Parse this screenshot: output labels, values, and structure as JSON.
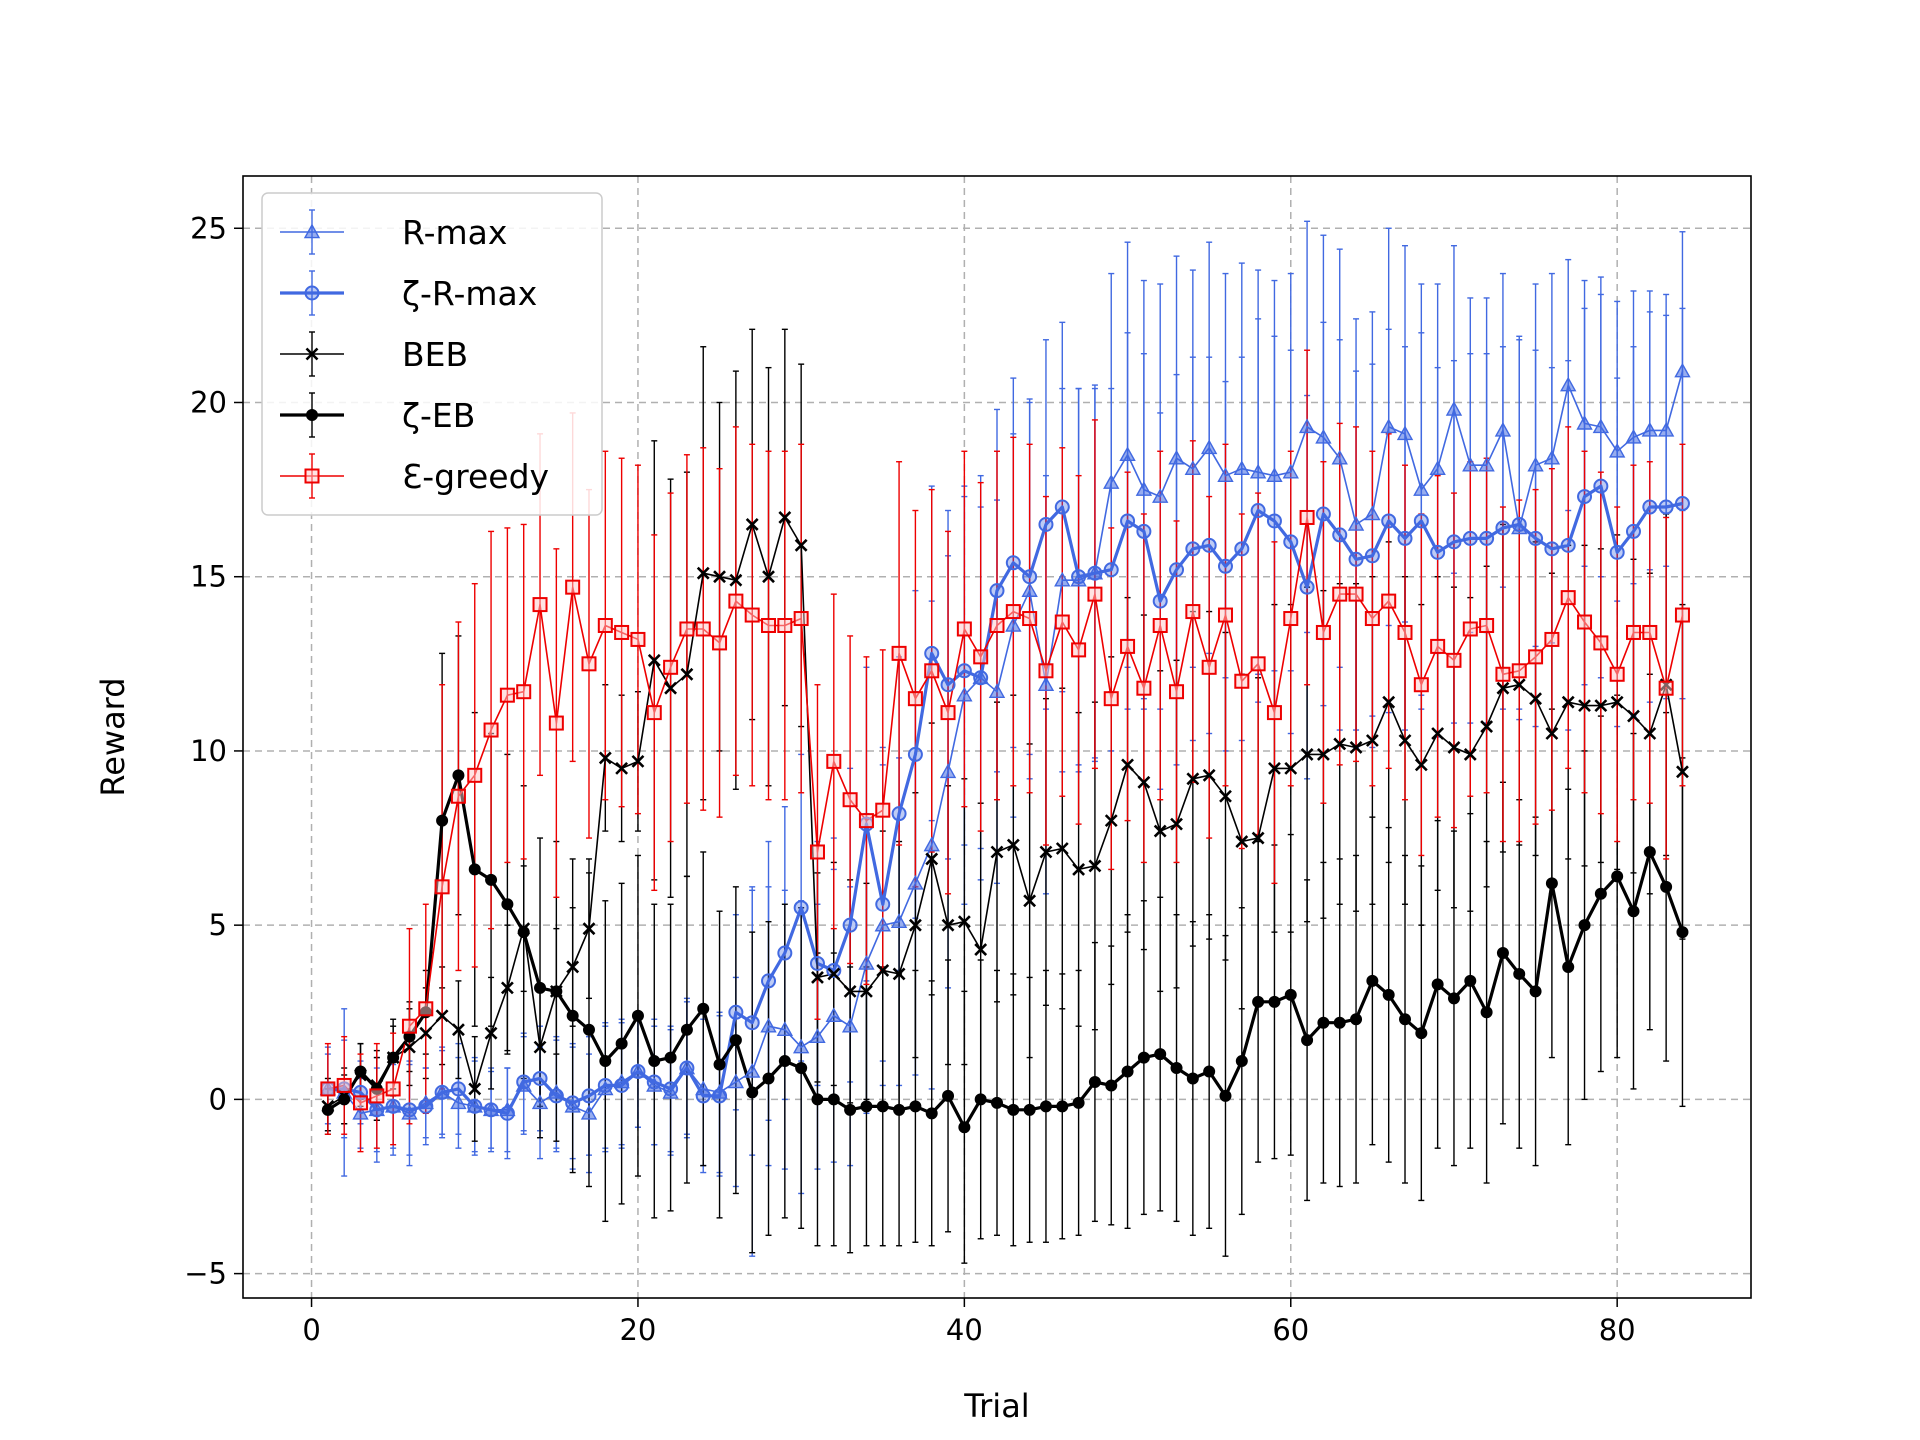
{
  "chart_data": {
    "type": "line",
    "title": "",
    "xlabel": "Trial",
    "ylabel": "Reward",
    "xlim": [
      -4.2,
      88.2
    ],
    "ylim": [
      -5.7,
      26.5
    ],
    "xticks": [
      0,
      20,
      40,
      60,
      80
    ],
    "yticks": [
      -5,
      0,
      5,
      10,
      15,
      20,
      25
    ],
    "xtick_labels": [
      "0",
      "20",
      "40",
      "60",
      "80"
    ],
    "ytick_labels": [
      "−5",
      "0",
      "5",
      "10",
      "15",
      "20",
      "25"
    ],
    "grid": true,
    "legend_position": "top-left",
    "x": [
      1,
      2,
      3,
      4,
      5,
      6,
      7,
      8,
      9,
      10,
      11,
      12,
      13,
      14,
      15,
      16,
      17,
      18,
      19,
      20,
      21,
      22,
      23,
      24,
      25,
      26,
      27,
      28,
      29,
      30,
      31,
      32,
      33,
      34,
      35,
      36,
      37,
      38,
      39,
      40,
      41,
      42,
      43,
      44,
      45,
      46,
      47,
      48,
      49,
      50,
      51,
      52,
      53,
      54,
      55,
      56,
      57,
      58,
      59,
      60,
      61,
      62,
      63,
      64,
      65,
      66,
      67,
      68,
      69,
      70,
      71,
      72,
      73,
      74,
      75,
      76,
      77,
      78,
      79,
      80,
      81,
      82,
      83,
      84
    ],
    "series": [
      {
        "name": "R-max",
        "color": "#4169e1",
        "marker": "triangle",
        "line_width": "thin",
        "values": [
          0.3,
          0.2,
          -0.4,
          -0.3,
          -0.2,
          -0.4,
          -0.1,
          0.2,
          -0.1,
          -0.2,
          -0.3,
          -0.3,
          0.4,
          -0.1,
          0.2,
          -0.2,
          -0.4,
          0.3,
          0.5,
          0.8,
          0.4,
          0.2,
          0.9,
          0.3,
          0.2,
          0.5,
          0.8,
          2.1,
          2.0,
          1.5,
          1.8,
          2.4,
          2.1,
          3.9,
          5.0,
          5.1,
          6.2,
          7.3,
          9.4,
          11.6,
          12.1,
          11.7,
          13.6,
          14.6,
          11.9,
          14.9,
          14.9,
          15.1,
          17.7,
          18.5,
          17.5,
          17.3,
          18.4,
          18.1,
          18.7,
          17.9,
          18.1,
          18.0,
          17.9,
          18.0,
          19.3,
          19.0,
          18.4,
          16.5,
          16.8,
          19.3,
          19.1,
          17.5,
          18.1,
          19.8,
          18.2,
          18.2,
          19.2,
          16.4,
          18.2,
          18.4,
          20.5,
          19.4,
          19.3,
          18.6,
          19.0,
          19.2,
          19.2,
          20.9
        ],
        "errors": [
          1.2,
          2.4,
          1.0,
          1.5,
          1.4,
          1.5,
          1.0,
          1.2,
          1.3,
          1.4,
          1.1,
          1.2,
          1.4,
          1.6,
          1.6,
          1.8,
          1.7,
          1.8,
          1.8,
          1.6,
          1.7,
          1.8,
          2.0,
          2.2,
          2.3,
          3.0,
          5.3,
          4.0,
          4.0,
          4.2,
          3.8,
          4.2,
          4.0,
          4.3,
          4.6,
          4.7,
          5.5,
          7.0,
          6.2,
          6.0,
          5.8,
          5.5,
          5.5,
          5.4,
          6.0,
          5.5,
          5.5,
          5.4,
          6.0,
          6.1,
          6.0,
          6.1,
          5.8,
          5.7,
          5.9,
          5.8,
          5.9,
          5.8,
          5.6,
          5.7,
          5.9,
          5.8,
          6.0,
          5.9,
          5.8,
          5.7,
          5.4,
          5.9,
          5.3,
          4.7,
          4.8,
          4.8,
          4.5,
          5.5,
          5.2,
          5.3,
          3.6,
          4.1,
          4.3,
          4.3,
          4.2,
          4.0,
          3.9,
          4.0
        ]
      },
      {
        "name": "ζ-R-max",
        "color": "#4169e1",
        "marker": "circle",
        "line_width": "thick",
        "values": [
          0.3,
          0.3,
          0.2,
          -0.3,
          -0.2,
          -0.3,
          -0.2,
          0.2,
          0.3,
          -0.2,
          -0.3,
          -0.4,
          0.5,
          0.6,
          0.1,
          -0.1,
          0.1,
          0.4,
          0.4,
          0.8,
          0.5,
          0.3,
          0.9,
          0.1,
          0.1,
          2.5,
          2.2,
          3.4,
          4.2,
          5.5,
          3.9,
          3.7,
          5.0,
          7.9,
          5.6,
          8.2,
          9.9,
          12.8,
          11.9,
          12.3,
          12.1,
          14.6,
          15.4,
          15.0,
          16.5,
          17.0,
          15.0,
          15.1,
          15.2,
          16.6,
          16.3,
          14.3,
          15.2,
          15.8,
          15.9,
          15.3,
          15.8,
          16.9,
          16.6,
          16.0,
          14.7,
          16.8,
          16.2,
          15.5,
          15.6,
          16.6,
          16.1,
          16.6,
          15.7,
          16.0,
          16.1,
          16.1,
          16.4,
          16.5,
          16.1,
          15.8,
          15.9,
          17.3,
          17.6,
          15.7,
          16.3,
          17.0,
          17.0,
          17.1
        ],
        "errors": [
          1.0,
          1.4,
          0.9,
          1.2,
          1.2,
          1.3,
          1.1,
          1.3,
          1.3,
          1.3,
          1.2,
          1.3,
          1.4,
          1.5,
          1.6,
          1.6,
          1.7,
          1.8,
          1.8,
          1.6,
          1.8,
          1.8,
          1.9,
          2.2,
          2.3,
          2.8,
          3.8,
          4.0,
          4.2,
          4.4,
          3.5,
          3.8,
          4.5,
          4.5,
          4.5,
          4.5,
          4.7,
          4.8,
          5.0,
          5.0,
          4.9,
          5.2,
          5.3,
          5.1,
          5.3,
          5.3,
          5.4,
          5.3,
          5.2,
          5.4,
          5.1,
          5.4,
          5.6,
          5.5,
          5.4,
          5.3,
          5.5,
          5.5,
          5.3,
          5.5,
          5.5,
          5.5,
          5.6,
          5.4,
          5.5,
          5.5,
          5.5,
          5.4,
          5.3,
          5.2,
          5.3,
          5.3,
          5.2,
          5.3,
          5.4,
          5.2,
          5.3,
          5.4,
          5.5,
          5.0,
          5.3,
          5.6,
          5.5,
          5.6
        ]
      },
      {
        "name": "BEB",
        "color": "#000000",
        "marker": "x",
        "line_width": "thin",
        "values": [
          -0.2,
          0.1,
          0.7,
          0.4,
          1.2,
          1.5,
          1.9,
          2.4,
          2.0,
          0.3,
          1.9,
          3.2,
          4.9,
          1.5,
          3.1,
          3.8,
          4.9,
          9.8,
          9.5,
          9.7,
          12.6,
          11.8,
          12.2,
          15.1,
          15.0,
          14.9,
          16.5,
          15.0,
          16.7,
          15.9,
          3.5,
          3.6,
          3.1,
          3.1,
          3.7,
          3.6,
          5.0,
          6.9,
          5.0,
          5.1,
          4.3,
          7.1,
          7.3,
          5.7,
          7.1,
          7.2,
          6.6,
          6.7,
          8.0,
          9.6,
          9.1,
          7.7,
          7.9,
          9.2,
          9.3,
          8.7,
          7.4,
          7.5,
          9.5,
          9.5,
          9.9,
          9.9,
          10.2,
          10.1,
          10.3,
          11.4,
          10.3,
          9.6,
          10.5,
          10.1,
          9.9,
          10.7,
          11.8,
          11.9,
          11.5,
          10.5,
          11.4,
          11.3,
          11.3,
          11.4,
          11.0,
          10.5,
          11.9,
          9.4
        ],
        "errors": [
          0.8,
          0.8,
          0.9,
          1.0,
          1.1,
          1.1,
          1.3,
          1.4,
          1.4,
          1.5,
          1.6,
          1.8,
          1.8,
          1.7,
          1.8,
          1.7,
          2.0,
          2.1,
          2.1,
          2.0,
          6.3,
          6.0,
          5.8,
          6.5,
          5.0,
          6.0,
          5.6,
          6.0,
          5.4,
          5.2,
          3.0,
          3.2,
          3.2,
          3.1,
          4.0,
          3.8,
          3.8,
          3.9,
          4.0,
          4.1,
          4.2,
          4.3,
          4.3,
          4.5,
          4.4,
          4.6,
          4.5,
          4.7,
          4.7,
          4.8,
          4.8,
          4.6,
          4.7,
          4.8,
          4.7,
          4.7,
          4.8,
          4.6,
          4.7,
          4.7,
          4.8,
          4.7,
          4.6,
          4.7,
          4.7,
          4.6,
          4.7,
          4.6,
          4.5,
          4.6,
          4.5,
          4.6,
          4.7,
          4.6,
          4.5,
          4.6,
          4.5,
          4.6,
          4.5,
          4.8,
          4.5,
          4.6,
          4.9,
          4.8
        ]
      },
      {
        "name": "ζ-EB",
        "color": "#000000",
        "marker": "dot",
        "line_width": "thick",
        "values": [
          -0.3,
          0.0,
          0.8,
          0.3,
          1.2,
          1.8,
          2.5,
          8.0,
          9.3,
          6.6,
          6.3,
          5.6,
          4.8,
          3.2,
          3.1,
          2.4,
          2.0,
          1.1,
          1.6,
          2.4,
          1.1,
          1.2,
          2.0,
          2.6,
          1.0,
          1.7,
          0.2,
          0.6,
          1.1,
          0.9,
          0.0,
          0.0,
          -0.3,
          -0.2,
          -0.2,
          -0.3,
          -0.2,
          -0.4,
          0.1,
          -0.8,
          0.0,
          -0.1,
          -0.3,
          -0.3,
          -0.2,
          -0.2,
          -0.1,
          0.5,
          0.4,
          0.8,
          1.2,
          1.3,
          0.9,
          0.6,
          0.8,
          0.1,
          1.1,
          2.8,
          2.8,
          3.0,
          1.7,
          2.2,
          2.2,
          2.3,
          3.4,
          3.0,
          2.3,
          1.9,
          3.3,
          2.9,
          3.4,
          2.5,
          4.2,
          3.6,
          3.1,
          6.2,
          3.8,
          5.0,
          5.9,
          6.4,
          5.4,
          7.1,
          6.1,
          4.8
        ],
        "errors": [
          0.6,
          0.7,
          0.8,
          0.9,
          0.9,
          1.0,
          1.2,
          4.8,
          4.0,
          4.5,
          4.2,
          4.3,
          4.2,
          4.3,
          4.3,
          4.5,
          4.5,
          4.6,
          4.6,
          4.6,
          4.5,
          4.4,
          4.4,
          4.5,
          4.4,
          4.4,
          4.6,
          4.5,
          4.5,
          4.6,
          4.2,
          4.2,
          4.1,
          4.0,
          4.0,
          3.9,
          3.9,
          3.8,
          3.9,
          3.9,
          4.0,
          3.8,
          3.9,
          3.8,
          3.9,
          3.8,
          3.8,
          4.0,
          4.0,
          4.5,
          4.5,
          4.5,
          4.4,
          4.5,
          4.5,
          4.6,
          4.4,
          4.6,
          4.5,
          4.6,
          4.6,
          4.6,
          4.7,
          4.7,
          4.7,
          4.8,
          4.7,
          4.8,
          4.7,
          4.8,
          4.8,
          4.9,
          4.9,
          5.0,
          5.0,
          5.0,
          5.1,
          5.0,
          5.1,
          5.2,
          5.1,
          5.1,
          5.0,
          5.0
        ]
      },
      {
        "name": "Ɛ-greedy",
        "color": "#ee0000",
        "marker": "square",
        "line_width": "thin",
        "values": [
          0.3,
          0.4,
          -0.1,
          0.1,
          0.3,
          2.1,
          2.6,
          6.1,
          8.7,
          9.3,
          10.6,
          11.6,
          11.7,
          14.2,
          10.8,
          14.7,
          12.5,
          13.6,
          13.4,
          13.2,
          11.1,
          12.4,
          13.5,
          13.5,
          13.1,
          14.3,
          13.9,
          13.6,
          13.6,
          13.8,
          7.1,
          9.7,
          8.6,
          8.0,
          8.3,
          12.8,
          11.5,
          12.3,
          11.1,
          13.5,
          12.7,
          13.6,
          14.0,
          13.8,
          12.3,
          13.7,
          12.9,
          14.5,
          11.5,
          13.0,
          11.8,
          13.6,
          11.7,
          14.0,
          12.4,
          13.9,
          12.0,
          12.5,
          11.1,
          13.8,
          16.7,
          13.4,
          14.5,
          14.5,
          13.8,
          14.3,
          13.4,
          11.9,
          13.0,
          12.6,
          13.5,
          13.6,
          12.2,
          12.3,
          12.7,
          13.2,
          14.4,
          13.7,
          13.1,
          12.2,
          13.4,
          13.4,
          11.8,
          13.9
        ],
        "errors": [
          1.3,
          1.4,
          1.4,
          1.5,
          1.6,
          2.8,
          3.0,
          5.8,
          5.0,
          5.5,
          5.7,
          4.8,
          4.8,
          4.9,
          5.0,
          5.0,
          5.0,
          5.0,
          5.0,
          5.0,
          5.1,
          5.0,
          5.0,
          5.2,
          5.0,
          5.0,
          4.9,
          5.0,
          5.0,
          5.0,
          4.8,
          4.8,
          4.7,
          4.7,
          4.6,
          5.5,
          5.4,
          5.2,
          5.2,
          5.1,
          5.0,
          5.0,
          5.0,
          5.0,
          5.0,
          5.0,
          5.0,
          5.0,
          4.9,
          5.0,
          5.0,
          5.0,
          4.9,
          4.9,
          4.9,
          4.9,
          4.8,
          4.9,
          4.9,
          4.8,
          4.8,
          4.9,
          4.9,
          4.8,
          4.8,
          4.8,
          4.8,
          4.9,
          4.9,
          4.8,
          4.8,
          4.8,
          4.8,
          4.9,
          4.8,
          4.9,
          4.9,
          4.9,
          4.9,
          4.8,
          4.8,
          4.9,
          4.9,
          4.9
        ]
      }
    ]
  }
}
